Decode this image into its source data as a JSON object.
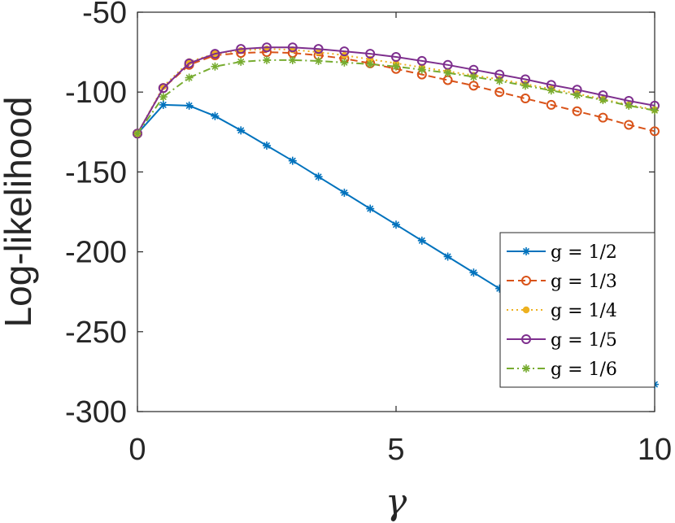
{
  "chart_data": {
    "type": "line",
    "xlabel": "γ",
    "ylabel": "Log-likelihood",
    "xlim": [
      0,
      10
    ],
    "ylim": [
      -300,
      -50
    ],
    "xticks": [
      0,
      5,
      10
    ],
    "yticks": [
      -50,
      -100,
      -150,
      -200,
      -250,
      -300
    ],
    "grid": false,
    "legend_position": "bottom-right",
    "x": [
      0,
      0.5,
      1,
      1.5,
      2,
      2.5,
      3,
      3.5,
      4,
      4.5,
      5,
      5.5,
      6,
      6.5,
      7,
      7.5,
      8,
      8.5,
      9,
      9.5,
      10
    ],
    "series": [
      {
        "name": "g = 1/2",
        "color": "#0072BD",
        "line_style": "solid",
        "marker": "asterisk",
        "values": [
          -126,
          -108,
          -108.5,
          -115,
          -124,
          -133.5,
          -143,
          -153,
          -163,
          -173,
          -183,
          -193,
          -203,
          -213,
          -223,
          -233,
          -243,
          -253,
          -263,
          -273,
          -283
        ]
      },
      {
        "name": "g = 1/3",
        "color": "#D95319",
        "line_style": "dashed",
        "marker": "circle",
        "values": [
          -126,
          -97.5,
          -83,
          -77,
          -75.5,
          -75,
          -75.5,
          -77,
          -79,
          -82,
          -85.5,
          -89,
          -92.5,
          -96,
          -100,
          -104,
          -108,
          -112,
          -116,
          -120.5,
          -124.5
        ]
      },
      {
        "name": "g = 1/4",
        "color": "#EDB120",
        "line_style": "dotted",
        "marker": "dot",
        "values": [
          -126,
          -96.5,
          -81,
          -76,
          -74,
          -73,
          -73.5,
          -75,
          -77,
          -79.5,
          -82,
          -84.5,
          -87,
          -89.5,
          -92,
          -95,
          -98,
          -101,
          -104.5,
          -108,
          -111
        ]
      },
      {
        "name": "g = 1/5",
        "color": "#7E2F8E",
        "line_style": "solid",
        "marker": "circle",
        "values": [
          -126,
          -97.5,
          -82,
          -76,
          -73,
          -72,
          -72,
          -73,
          -74.5,
          -76,
          -78,
          -80.5,
          -83,
          -86,
          -89,
          -92,
          -95.5,
          -98.5,
          -102,
          -105.5,
          -108.5
        ]
      },
      {
        "name": "g = 1/6",
        "color": "#77AC30",
        "line_style": "dashdot",
        "marker": "asterisk",
        "values": [
          -126,
          -103,
          -91,
          -84,
          -81,
          -80,
          -80,
          -80.5,
          -81.5,
          -82.5,
          -84,
          -86,
          -88,
          -90.5,
          -93,
          -96,
          -99,
          -102,
          -105,
          -108.5,
          -111.5
        ]
      }
    ]
  }
}
